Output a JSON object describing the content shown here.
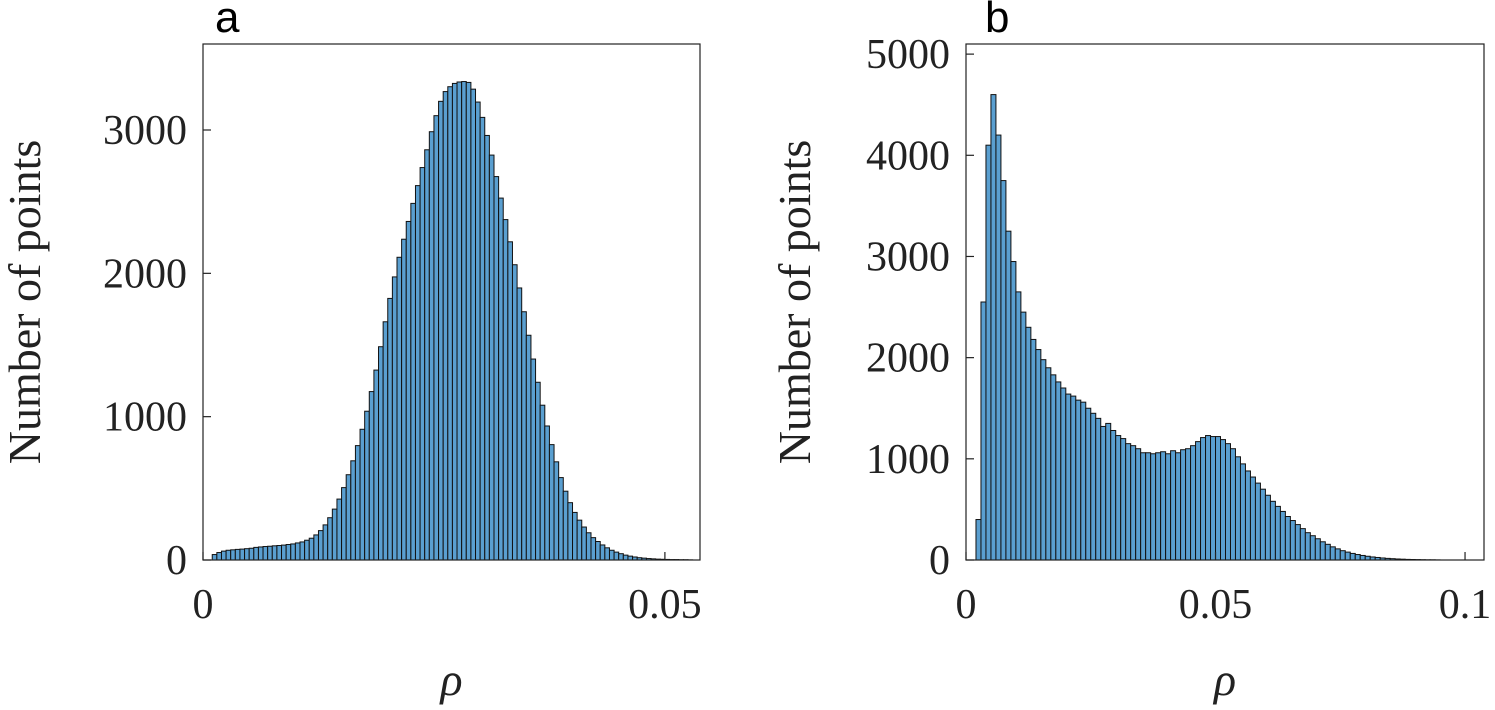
{
  "chart_data": [
    {
      "type": "histogram",
      "panel_label": "a",
      "xlabel": "ρ",
      "ylabel": "Number of points",
      "color": "#5a9fd0",
      "bins": [
        0.001,
        0.0015,
        0.002,
        0.0025,
        0.003,
        0.0035,
        0.004,
        0.0045,
        0.005,
        0.0055,
        0.006,
        0.0065,
        0.007,
        0.0075,
        0.008,
        0.0085,
        0.009,
        0.0095,
        0.01,
        0.0105,
        0.011,
        0.0115,
        0.012,
        0.0125,
        0.013,
        0.0135,
        0.014,
        0.0145,
        0.015,
        0.0155,
        0.016,
        0.0165,
        0.017,
        0.0175,
        0.018,
        0.0185,
        0.019,
        0.0195,
        0.02,
        0.0205,
        0.021,
        0.0215,
        0.022,
        0.0225,
        0.023,
        0.0235,
        0.024,
        0.0245,
        0.025,
        0.0255,
        0.026,
        0.0265,
        0.027,
        0.0275,
        0.028,
        0.0285,
        0.029,
        0.0295,
        0.03,
        0.0305,
        0.031,
        0.0315,
        0.032,
        0.0325,
        0.033,
        0.0335,
        0.034,
        0.0345,
        0.035,
        0.0355,
        0.036,
        0.0365,
        0.037,
        0.0375,
        0.038,
        0.0385,
        0.039,
        0.0395,
        0.04,
        0.0405,
        0.041,
        0.0415,
        0.042,
        0.0425,
        0.043,
        0.0435,
        0.044,
        0.0445,
        0.045,
        0.0455,
        0.046,
        0.0465,
        0.047,
        0.0475,
        0.048,
        0.0485,
        0.049,
        0.0495,
        0.05,
        0.0505,
        0.051,
        0.0515,
        0.052,
        0.0525,
        0.053
      ],
      "values": [
        38,
        52,
        62,
        68,
        71,
        74,
        76,
        79,
        82,
        88,
        91,
        94,
        96,
        99,
        101,
        104,
        108,
        112,
        119,
        126,
        138,
        152,
        175,
        205,
        245,
        295,
        355,
        425,
        505,
        595,
        692,
        798,
        912,
        1038,
        1175,
        1325,
        1488,
        1662,
        1825,
        1975,
        2112,
        2238,
        2362,
        2488,
        2612,
        2738,
        2862,
        2988,
        3100,
        3200,
        3268,
        3302,
        3325,
        3335,
        3338,
        3332,
        3285,
        3195,
        3088,
        2962,
        2825,
        2675,
        2525,
        2375,
        2220,
        2060,
        1898,
        1732,
        1568,
        1402,
        1240,
        1080,
        935,
        805,
        685,
        575,
        480,
        400,
        332,
        278,
        230,
        190,
        156,
        129,
        105,
        85,
        68,
        55,
        44,
        34,
        27,
        21,
        16,
        13,
        10,
        8,
        6,
        5,
        4,
        3,
        3,
        2,
        2,
        1
      ],
      "xlim": [
        0,
        0.0538
      ],
      "xticks": [
        0,
        0.05
      ],
      "ylim": [
        0,
        3600
      ],
      "yticks": [
        0,
        1000,
        2000,
        3000
      ]
    },
    {
      "type": "histogram",
      "panel_label": "b",
      "xlabel": "ρ",
      "ylabel": "Number of points",
      "color": "#5a9fd0",
      "bins": [
        0.002,
        0.003,
        0.004,
        0.005,
        0.006,
        0.007,
        0.008,
        0.009,
        0.01,
        0.011,
        0.012,
        0.013,
        0.014,
        0.015,
        0.016,
        0.017,
        0.018,
        0.019,
        0.02,
        0.021,
        0.022,
        0.023,
        0.024,
        0.025,
        0.026,
        0.027,
        0.028,
        0.029,
        0.03,
        0.031,
        0.032,
        0.033,
        0.034,
        0.035,
        0.036,
        0.037,
        0.038,
        0.039,
        0.04,
        0.041,
        0.042,
        0.043,
        0.044,
        0.045,
        0.046,
        0.047,
        0.048,
        0.049,
        0.05,
        0.051,
        0.052,
        0.053,
        0.054,
        0.055,
        0.056,
        0.057,
        0.058,
        0.059,
        0.06,
        0.061,
        0.062,
        0.063,
        0.064,
        0.065,
        0.066,
        0.067,
        0.068,
        0.069,
        0.07,
        0.071,
        0.072,
        0.073,
        0.074,
        0.075,
        0.076,
        0.077,
        0.078,
        0.079,
        0.08,
        0.081,
        0.082,
        0.083,
        0.084,
        0.085,
        0.086,
        0.087,
        0.088,
        0.089,
        0.09,
        0.091,
        0.092,
        0.093,
        0.094,
        0.095
      ],
      "values": [
        400,
        2550,
        4100,
        4600,
        4200,
        3750,
        3250,
        2950,
        2650,
        2450,
        2300,
        2180,
        2080,
        1980,
        1900,
        1830,
        1760,
        1700,
        1640,
        1620,
        1580,
        1560,
        1500,
        1450,
        1400,
        1320,
        1350,
        1280,
        1230,
        1200,
        1150,
        1130,
        1100,
        1060,
        1060,
        1050,
        1060,
        1070,
        1050,
        1080,
        1060,
        1090,
        1100,
        1130,
        1170,
        1210,
        1230,
        1220,
        1220,
        1190,
        1150,
        1100,
        1020,
        950,
        880,
        820,
        760,
        700,
        640,
        580,
        530,
        480,
        430,
        390,
        350,
        310,
        270,
        240,
        210,
        180,
        155,
        130,
        110,
        92,
        78,
        65,
        54,
        45,
        37,
        30,
        25,
        20,
        16,
        13,
        10,
        8,
        6,
        5,
        4,
        3,
        2,
        2,
        1
      ],
      "xlim": [
        0,
        0.1038
      ],
      "xticks": [
        0,
        0.05,
        0.1
      ],
      "ylim": [
        0,
        5100
      ],
      "yticks": [
        0,
        1000,
        2000,
        3000,
        4000,
        5000
      ]
    }
  ]
}
